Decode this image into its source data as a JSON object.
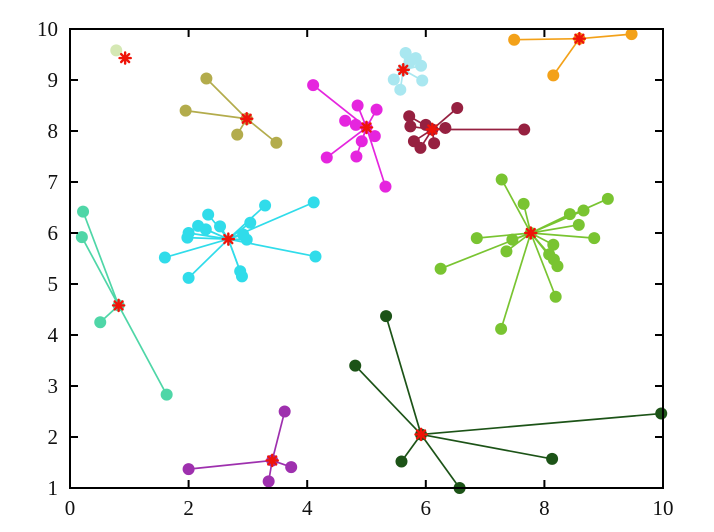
{
  "chart_data": {
    "type": "scatter",
    "title": "",
    "xlabel": "",
    "ylabel": "",
    "xlim": [
      0,
      10
    ],
    "ylim": [
      1,
      10
    ],
    "grid": false,
    "legend": "none",
    "description": "K-means style clustering result: 11 colored point clusters, each with lines radiating from a red asterisk centroid to its member points",
    "x_ticks": [
      0,
      2,
      4,
      6,
      8,
      10
    ],
    "y_ticks": [
      1,
      2,
      3,
      4,
      5,
      6,
      7,
      8,
      9,
      10
    ],
    "x_tick_labels": [
      "0",
      "2",
      "4",
      "6",
      "8",
      "10"
    ],
    "y_tick_labels": [
      "1",
      "2",
      "3",
      "4",
      "5",
      "6",
      "7",
      "8",
      "9",
      "10"
    ],
    "axis_color": "#000000",
    "background_color": "#ffffff",
    "centroid_marker": {
      "shape": "asterisk",
      "color": "#ee1409"
    },
    "clusters": [
      {
        "name": "pale-green",
        "color": "#d5e8b4",
        "centroid": [
          0.93,
          9.43
        ],
        "point_at_centroid": false,
        "points": [
          [
            0.78,
            9.58
          ]
        ]
      },
      {
        "name": "olive",
        "color": "#b3ac4c",
        "centroid": [
          2.98,
          8.24
        ],
        "point_at_centroid": true,
        "points": [
          [
            2.3,
            9.03
          ],
          [
            1.95,
            8.4
          ],
          [
            2.82,
            7.93
          ],
          [
            3.48,
            7.77
          ]
        ]
      },
      {
        "name": "magenta",
        "color": "#e525de",
        "centroid": [
          5.0,
          8.07
        ],
        "point_at_centroid": true,
        "points": [
          [
            4.1,
            8.9
          ],
          [
            4.85,
            8.5
          ],
          [
            5.17,
            8.42
          ],
          [
            4.64,
            8.2
          ],
          [
            4.82,
            8.12
          ],
          [
            5.14,
            7.9
          ],
          [
            4.92,
            7.8
          ],
          [
            4.33,
            7.48
          ],
          [
            4.83,
            7.5
          ],
          [
            5.32,
            6.91
          ]
        ]
      },
      {
        "name": "pale-cyan",
        "color": "#a9e7f0",
        "centroid": [
          5.62,
          9.2
        ],
        "point_at_centroid": true,
        "points": [
          [
            5.66,
            9.53
          ],
          [
            5.83,
            9.43
          ],
          [
            5.73,
            9.35
          ],
          [
            5.92,
            9.28
          ],
          [
            5.46,
            9.01
          ],
          [
            5.94,
            8.99
          ],
          [
            5.57,
            8.81
          ]
        ]
      },
      {
        "name": "orange",
        "color": "#f3a119",
        "centroid": [
          8.59,
          9.81
        ],
        "point_at_centroid": true,
        "points": [
          [
            7.49,
            9.79
          ],
          [
            9.47,
            9.9
          ],
          [
            8.15,
            9.09
          ]
        ]
      },
      {
        "name": "dark-red",
        "color": "#962040",
        "centroid": [
          6.11,
          8.03
        ],
        "point_at_centroid": true,
        "points": [
          [
            6.53,
            8.45
          ],
          [
            5.72,
            8.29
          ],
          [
            6.0,
            8.12
          ],
          [
            5.74,
            8.09
          ],
          [
            6.33,
            8.06
          ],
          [
            7.66,
            8.03
          ],
          [
            5.8,
            7.8
          ],
          [
            6.14,
            7.76
          ],
          [
            5.91,
            7.67
          ]
        ]
      },
      {
        "name": "cyan",
        "color": "#30dcea",
        "centroid": [
          2.67,
          5.88
        ],
        "point_at_centroid": false,
        "points": [
          [
            3.29,
            6.54
          ],
          [
            4.11,
            6.6
          ],
          [
            2.33,
            6.36
          ],
          [
            2.16,
            6.14
          ],
          [
            2.53,
            6.13
          ],
          [
            2.29,
            6.07
          ],
          [
            2.0,
            6.0
          ],
          [
            3.04,
            6.2
          ],
          [
            2.92,
            5.97
          ],
          [
            2.98,
            5.87
          ],
          [
            1.98,
            5.91
          ],
          [
            4.14,
            5.54
          ],
          [
            1.6,
            5.52
          ],
          [
            2.0,
            5.12
          ],
          [
            2.87,
            5.25
          ],
          [
            2.9,
            5.15
          ]
        ]
      },
      {
        "name": "spring-green",
        "color": "#4fd6a7",
        "centroid": [
          0.82,
          4.58
        ],
        "point_at_centroid": true,
        "points": [
          [
            0.22,
            6.42
          ],
          [
            0.2,
            5.92
          ],
          [
            0.51,
            4.25
          ],
          [
            1.63,
            2.83
          ]
        ]
      },
      {
        "name": "light-green",
        "color": "#79c431",
        "centroid": [
          7.77,
          6.0
        ],
        "point_at_centroid": true,
        "points": [
          [
            7.28,
            7.05
          ],
          [
            7.65,
            6.57
          ],
          [
            9.07,
            6.67
          ],
          [
            8.66,
            6.44
          ],
          [
            8.43,
            6.37
          ],
          [
            8.58,
            6.16
          ],
          [
            8.84,
            5.9
          ],
          [
            6.86,
            5.9
          ],
          [
            7.46,
            5.87
          ],
          [
            8.15,
            5.77
          ],
          [
            7.36,
            5.64
          ],
          [
            8.08,
            5.58
          ],
          [
            8.16,
            5.48
          ],
          [
            8.22,
            5.35
          ],
          [
            6.25,
            5.3
          ],
          [
            8.19,
            4.75
          ],
          [
            7.27,
            4.12
          ]
        ]
      },
      {
        "name": "purple",
        "color": "#9e30ae",
        "centroid": [
          3.41,
          1.54
        ],
        "point_at_centroid": true,
        "points": [
          [
            3.62,
            2.5
          ],
          [
            2.0,
            1.37
          ],
          [
            3.73,
            1.41
          ],
          [
            3.35,
            1.13
          ]
        ]
      },
      {
        "name": "dark-green",
        "color": "#1c5317",
        "centroid": [
          5.92,
          2.05
        ],
        "point_at_centroid": true,
        "points": [
          [
            5.33,
            4.37
          ],
          [
            4.81,
            3.4
          ],
          [
            5.59,
            1.52
          ],
          [
            6.57,
            1.0
          ],
          [
            8.13,
            1.57
          ],
          [
            9.97,
            2.46
          ]
        ]
      }
    ]
  }
}
